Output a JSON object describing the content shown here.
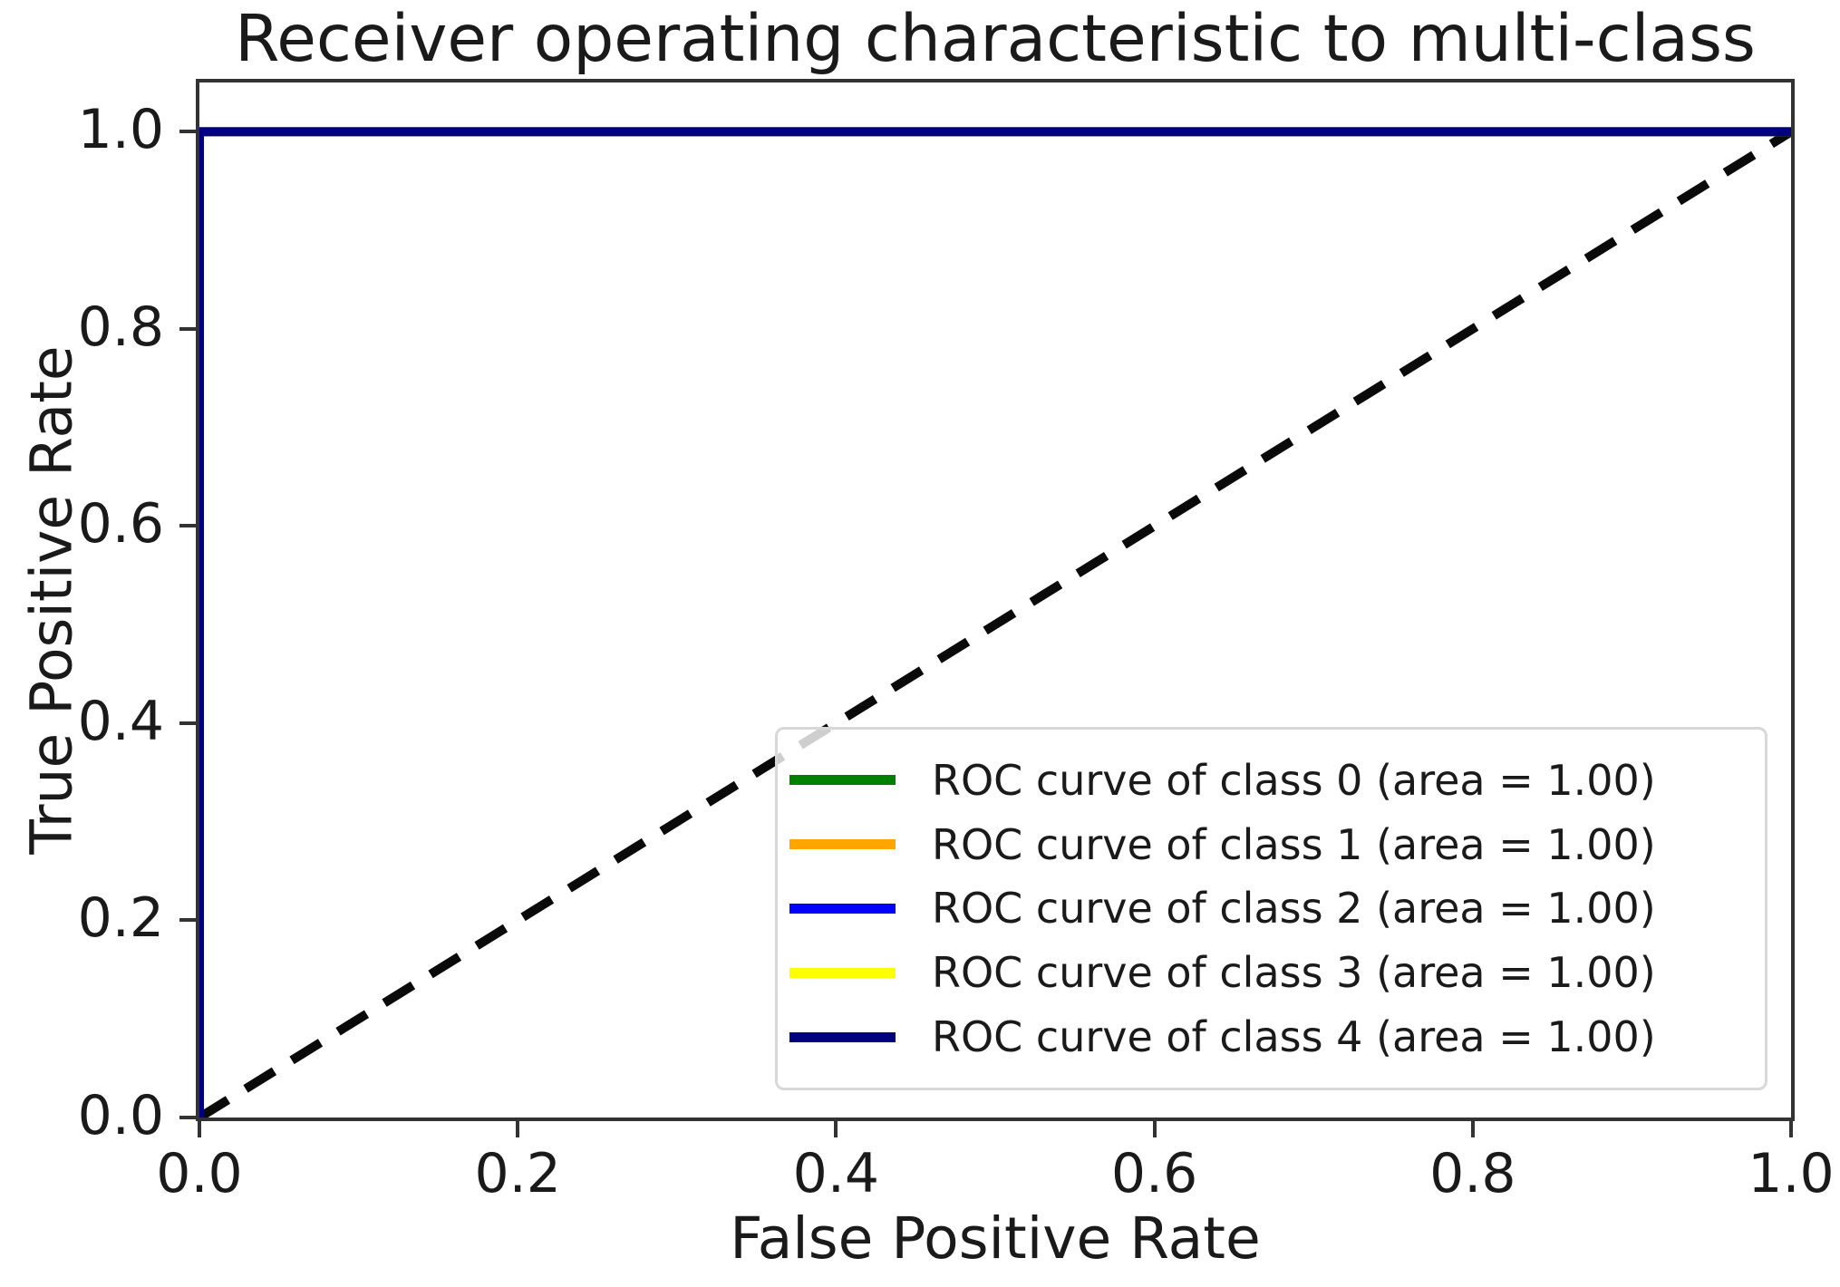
{
  "chart_data": {
    "type": "line",
    "title": "Receiver operating characteristic to multi-class",
    "xlabel": "False Positive Rate",
    "ylabel": "True Positive Rate",
    "xlim": [
      0.0,
      1.0
    ],
    "ylim": [
      0.0,
      1.05
    ],
    "grid": false,
    "legend_position": "lower right",
    "xticks": [
      0.0,
      0.2,
      0.4,
      0.6,
      0.8,
      1.0
    ],
    "xtick_labels": [
      "0.0",
      "0.2",
      "0.4",
      "0.6",
      "0.8",
      "1.0"
    ],
    "yticks": [
      0.0,
      0.2,
      0.4,
      0.6,
      0.8,
      1.0
    ],
    "ytick_labels": [
      "0.0",
      "0.2",
      "0.4",
      "0.6",
      "0.8",
      "1.0"
    ],
    "series": [
      {
        "name": "ROC curve of class 0 (area = 1.00)",
        "color": "#008000",
        "x": [
          0,
          0,
          1
        ],
        "y": [
          0,
          1,
          1
        ]
      },
      {
        "name": "ROC curve of class 1 (area = 1.00)",
        "color": "#FFA500",
        "x": [
          0,
          0,
          1
        ],
        "y": [
          0,
          1,
          1
        ]
      },
      {
        "name": "ROC curve of class 2 (area = 1.00)",
        "color": "#0000FF",
        "x": [
          0,
          0,
          1
        ],
        "y": [
          0,
          1,
          1
        ]
      },
      {
        "name": "ROC curve of class 3 (area = 1.00)",
        "color": "#FFFF00",
        "x": [
          0,
          0,
          1
        ],
        "y": [
          0,
          1,
          1
        ]
      },
      {
        "name": "ROC curve of class 4 (area = 1.00)",
        "color": "#000080",
        "x": [
          0,
          0,
          1
        ],
        "y": [
          0,
          1,
          1
        ]
      }
    ],
    "reference_line": {
      "name": "chance-diagonal",
      "color": "#0a0a0a",
      "style": "dashed",
      "x": [
        0,
        1
      ],
      "y": [
        0,
        1
      ]
    },
    "colors": {
      "spine": "#333333",
      "text": "#1a1a1a",
      "legend_border": "#d8d8d8"
    }
  }
}
